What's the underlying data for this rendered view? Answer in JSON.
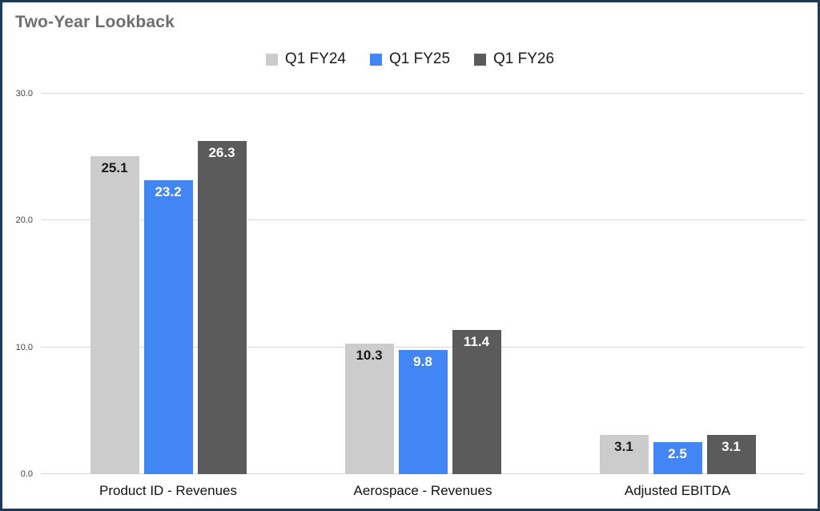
{
  "title": "Two-Year Lookback",
  "chart_data": {
    "type": "bar",
    "title": "Two-Year Lookback",
    "categories": [
      "Product ID - Revenues",
      "Aerospace - Revenues",
      "Adjusted EBITDA"
    ],
    "series": [
      {
        "name": "Q1 FY24",
        "color": "#cccccc",
        "label_color": "#1a1a1a",
        "values": [
          25.1,
          10.3,
          3.1
        ]
      },
      {
        "name": "Q1 FY25",
        "color": "#4285f4",
        "label_color": "#ffffff",
        "values": [
          23.2,
          9.8,
          2.5
        ]
      },
      {
        "name": "Q1 FY26",
        "color": "#5b5b5b",
        "label_color": "#ffffff",
        "values": [
          26.3,
          11.4,
          3.1
        ]
      }
    ],
    "ylim": [
      0,
      30
    ],
    "yticks": [
      "0.0",
      "10.0",
      "20.0",
      "30.0"
    ],
    "grid": true,
    "legend_position": "top",
    "xlabel": "",
    "ylabel": ""
  },
  "colors": {
    "frame_border": "#1b3a57",
    "gridline": "#d9d9d9",
    "title_text": "#6e6e6e"
  }
}
